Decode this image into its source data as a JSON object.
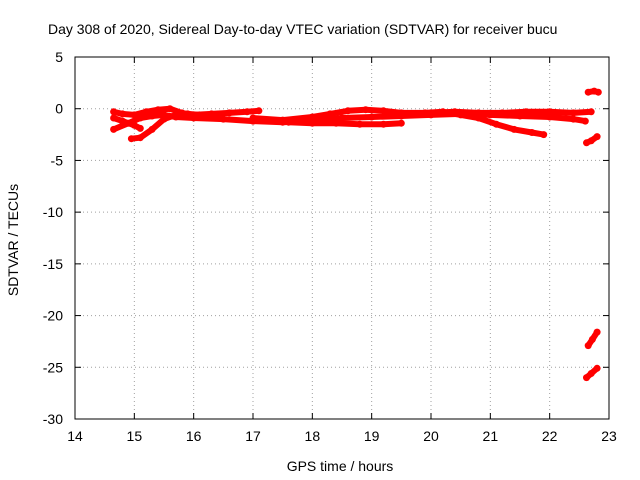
{
  "chart_data": {
    "type": "scatter",
    "title": "Day 308 of 2020, Sidereal Day-to-day VTEC variation (SDTVAR) for receiver bucu",
    "xlabel": "GPS time / hours",
    "ylabel": "SDTVAR / TECUs",
    "xlim": [
      14,
      23
    ],
    "ylim": [
      -30,
      5
    ],
    "xticks": [
      14,
      15,
      16,
      17,
      18,
      19,
      20,
      21,
      22,
      23
    ],
    "yticks": [
      5,
      0,
      -5,
      -10,
      -15,
      -20,
      -25,
      -30
    ],
    "grid": true,
    "color": "#ff0000",
    "series": [
      {
        "x": [
          14.65,
          14.8,
          15.0,
          15.2,
          15.4,
          15.6,
          15.8,
          16.0,
          16.3,
          16.6,
          16.9,
          17.1
        ],
        "y": [
          -0.3,
          -0.5,
          -0.6,
          -0.3,
          -0.1,
          0.0,
          -0.4,
          -0.6,
          -0.5,
          -0.4,
          -0.3,
          -0.2
        ]
      },
      {
        "x": [
          14.65,
          14.9,
          15.1,
          15.3,
          15.5,
          15.7,
          16.0,
          16.5,
          17.0,
          17.5,
          18.0,
          18.5,
          19.0,
          19.5,
          20.0,
          20.5,
          21.0,
          21.5,
          22.0,
          22.4,
          22.6
        ],
        "y": [
          -2.0,
          -1.4,
          -0.9,
          -0.7,
          -0.6,
          -0.8,
          -0.9,
          -1.0,
          -1.2,
          -1.3,
          -1.2,
          -0.9,
          -0.8,
          -0.7,
          -0.6,
          -0.5,
          -0.6,
          -0.7,
          -0.8,
          -1.0,
          -1.2
        ]
      },
      {
        "x": [
          14.65,
          14.8,
          15.0,
          15.1
        ],
        "y": [
          -0.9,
          -1.2,
          -1.6,
          -1.9
        ]
      },
      {
        "x": [
          14.95,
          15.1,
          15.3,
          15.5,
          15.7,
          15.9,
          16.1
        ],
        "y": [
          -2.9,
          -2.8,
          -2.0,
          -1.0,
          -0.6,
          -0.5,
          -0.6
        ]
      },
      {
        "x": [
          17.0,
          17.5,
          18.0,
          18.3,
          18.6,
          18.9,
          19.2,
          19.5,
          19.9,
          20.2,
          20.5,
          20.8,
          21.1,
          21.4,
          21.7,
          21.9
        ],
        "y": [
          -0.9,
          -1.1,
          -0.8,
          -0.5,
          -0.2,
          -0.1,
          -0.2,
          -0.4,
          -0.4,
          -0.3,
          -0.6,
          -0.9,
          -1.5,
          -2.0,
          -2.3,
          -2.5
        ]
      },
      {
        "x": [
          17.6,
          18.0,
          18.4,
          18.8,
          19.2,
          19.5
        ],
        "y": [
          -1.3,
          -1.4,
          -1.4,
          -1.5,
          -1.5,
          -1.4
        ]
      },
      {
        "x": [
          20.0,
          20.4,
          20.8,
          21.2,
          21.6,
          22.0,
          22.4,
          22.7
        ],
        "y": [
          -0.4,
          -0.3,
          -0.4,
          -0.4,
          -0.3,
          -0.3,
          -0.4,
          -0.3
        ]
      },
      {
        "x": [
          22.65,
          22.75,
          22.82
        ],
        "y": [
          1.6,
          1.7,
          1.6
        ]
      },
      {
        "x": [
          22.62,
          22.7,
          22.8
        ],
        "y": [
          -3.3,
          -3.1,
          -2.7
        ]
      },
      {
        "x": [
          22.65,
          22.72,
          22.8
        ],
        "y": [
          -22.9,
          -22.3,
          -21.6
        ]
      },
      {
        "x": [
          22.62,
          22.7,
          22.8
        ],
        "y": [
          -26.0,
          -25.6,
          -25.1
        ]
      }
    ]
  }
}
